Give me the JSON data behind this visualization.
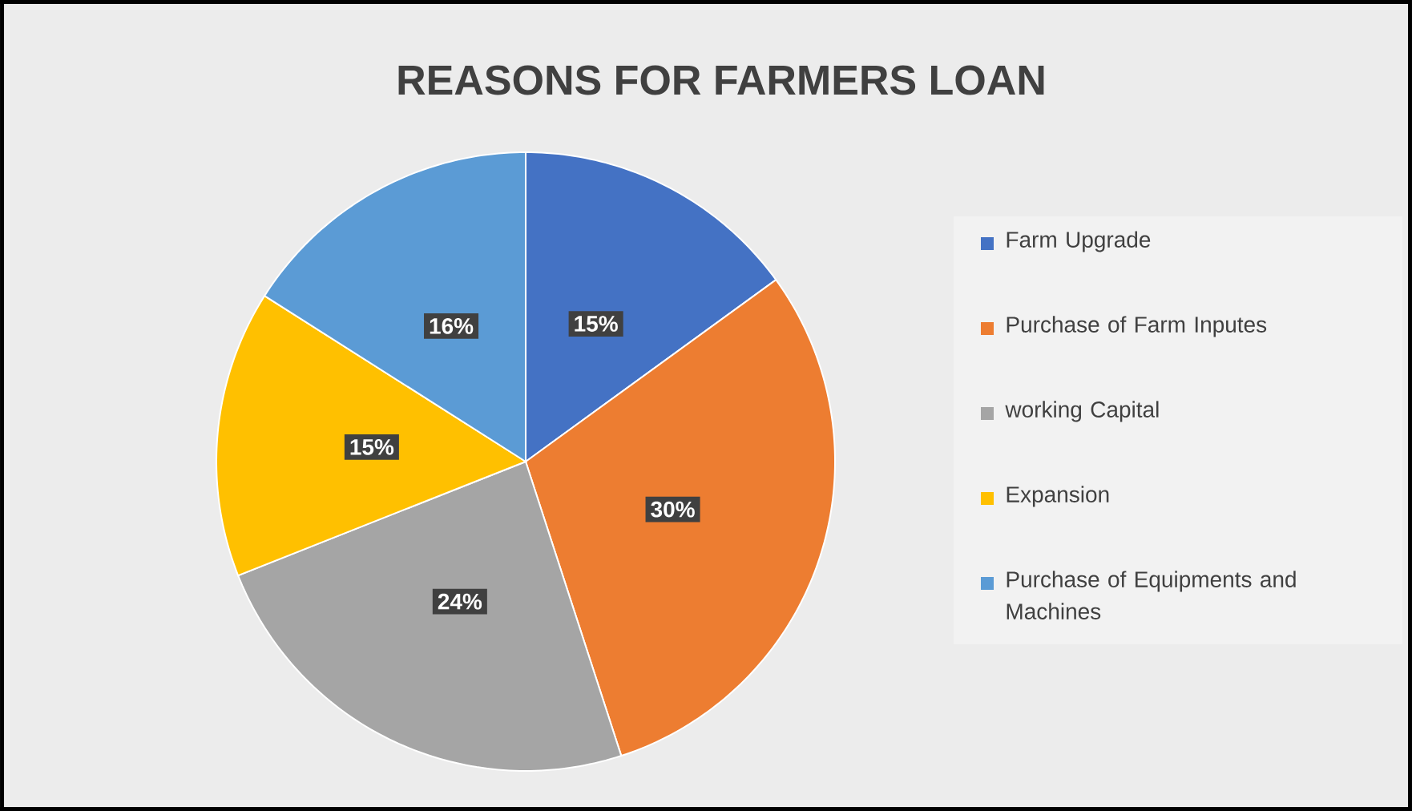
{
  "chart_data": {
    "type": "pie",
    "title": "REASONS FOR FARMERS LOAN",
    "categories": [
      "Farm Upgrade",
      "Purchase of Farm Inputes",
      "working Capital",
      "Expansion",
      "Purchase of Equipments and Machines"
    ],
    "values": [
      15,
      30,
      24,
      15,
      16
    ],
    "value_labels": [
      "15%",
      "30%",
      "24%",
      "15%",
      "16%"
    ],
    "colors": [
      "#4472c4",
      "#ed7d31",
      "#a5a5a5",
      "#ffc000",
      "#5b9bd5"
    ],
    "legend": "right"
  }
}
